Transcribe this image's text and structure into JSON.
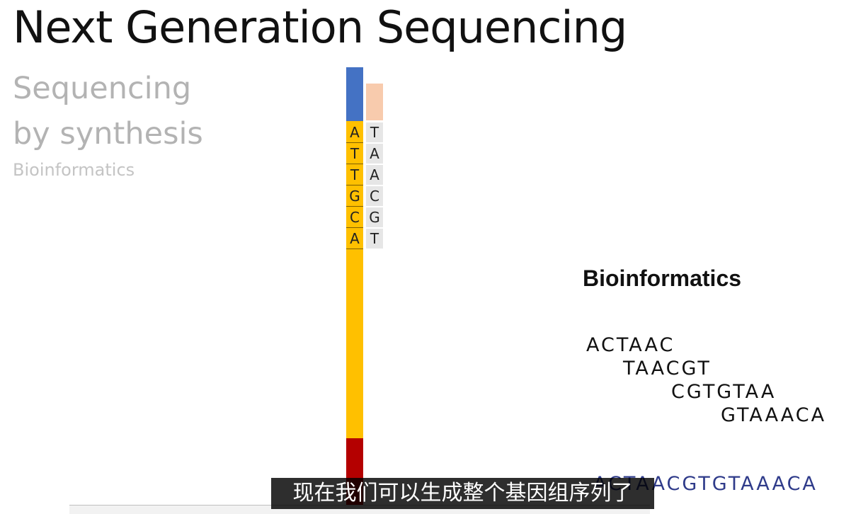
{
  "slide": {
    "title": "Next Generation Sequencing",
    "subtitle_line1": "Sequencing",
    "subtitle_line2": "by synthesis",
    "subtitle_line3": "Bioinformatics"
  },
  "diagram": {
    "template_bases": [
      "A",
      "T",
      "T",
      "G",
      "C",
      "A"
    ],
    "complement_bases": [
      "T",
      "A",
      "A",
      "C",
      "G",
      "T"
    ],
    "colors": {
      "template_strand": "#ffc000",
      "top_cap": "#4472c4",
      "bottom_cap": "#b40000",
      "primer": "#f8cbad",
      "complement_base_bg": "#e6e6e6"
    }
  },
  "bioinformatics": {
    "heading": "Bioinformatics",
    "reads": [
      "ACTAAC",
      "TAACGT",
      "CGTGTAA",
      "GTAAACA"
    ],
    "assembled_sequence": "ACTAACGTGTAAACA"
  },
  "subtitle_caption": "现在我们可以生成整个基因组序列了"
}
